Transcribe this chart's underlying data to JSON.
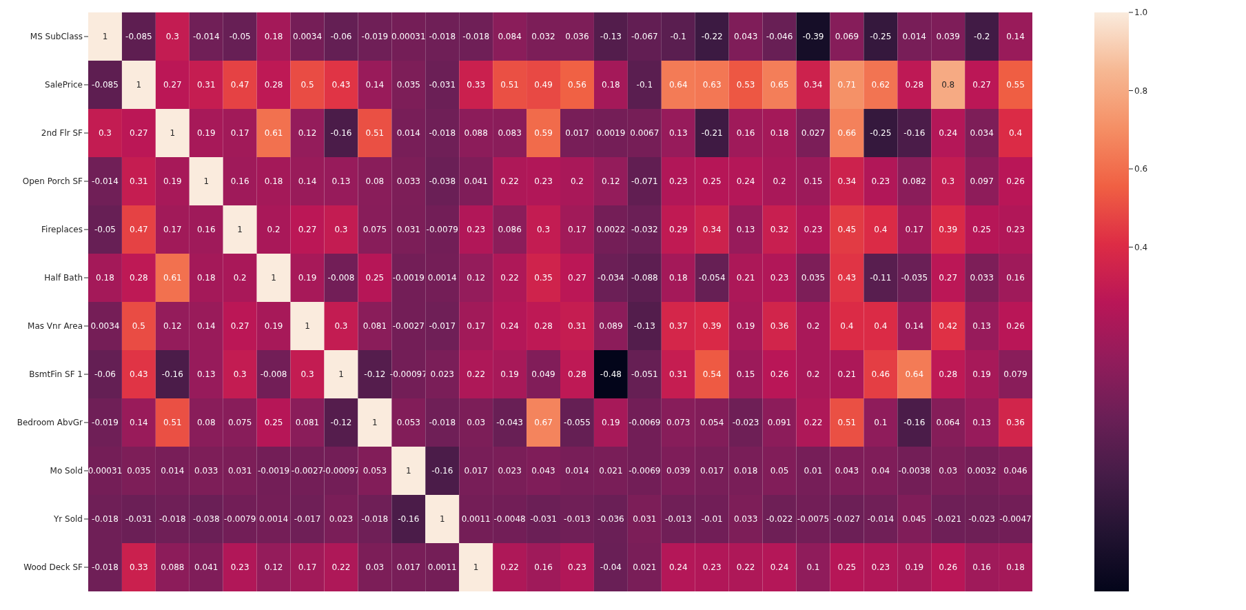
{
  "chart_data": {
    "type": "heatmap",
    "categories": [
      null,
      null,
      null,
      null,
      null,
      null,
      null,
      null,
      null,
      null,
      null,
      null,
      null,
      null,
      null,
      null,
      null,
      null,
      null,
      null,
      null,
      null,
      null,
      null,
      null,
      null,
      null,
      null
    ],
    "y_categories": [
      "MS SubClass",
      "SalePrice",
      "2nd Flr SF",
      "Open Porch SF",
      "Fireplaces",
      "Half Bath",
      "Mas Vnr Area",
      "BsmtFin SF 1",
      "Bedroom AbvGr",
      "Mo Sold",
      "Yr Sold",
      "Wood Deck SF"
    ],
    "cells": [
      [
        1,
        -0.085,
        0.3,
        -0.014,
        -0.05,
        0.18,
        0.0034,
        -0.06,
        -0.019,
        0.00031,
        -0.018,
        -0.018,
        0.084,
        0.032,
        0.036,
        -0.13,
        -0.067,
        -0.1,
        -0.22,
        0.043,
        -0.046,
        -0.39,
        0.069,
        -0.25,
        0.014,
        0.039,
        -0.2,
        0.14
      ],
      [
        -0.085,
        1,
        0.27,
        0.31,
        0.47,
        0.28,
        0.5,
        0.43,
        0.14,
        0.035,
        -0.031,
        0.33,
        0.51,
        0.49,
        0.56,
        0.18,
        -0.1,
        0.64,
        0.63,
        0.53,
        0.65,
        0.34,
        0.71,
        0.62,
        0.28,
        0.8,
        0.27,
        0.55
      ],
      [
        0.3,
        0.27,
        1,
        0.19,
        0.17,
        0.61,
        0.12,
        -0.16,
        0.51,
        0.014,
        -0.018,
        0.088,
        0.083,
        0.59,
        0.017,
        0.0019,
        0.0067,
        0.13,
        -0.21,
        0.16,
        0.18,
        0.027,
        0.66,
        -0.25,
        -0.16,
        0.24,
        0.034,
        0.4
      ],
      [
        -0.014,
        0.31,
        0.19,
        1,
        0.16,
        0.18,
        0.14,
        0.13,
        0.08,
        0.033,
        -0.038,
        0.041,
        0.22,
        0.23,
        0.2,
        0.12,
        -0.071,
        0.23,
        0.25,
        0.24,
        0.2,
        0.15,
        0.34,
        0.23,
        0.082,
        0.3,
        0.097,
        0.26
      ],
      [
        -0.05,
        0.47,
        0.17,
        0.16,
        1,
        0.2,
        0.27,
        0.3,
        0.075,
        0.031,
        -0.0079,
        0.23,
        0.086,
        0.3,
        0.17,
        0.0022,
        -0.032,
        0.29,
        0.34,
        0.13,
        0.32,
        0.23,
        0.45,
        0.4,
        0.17,
        0.39,
        0.25,
        0.23
      ],
      [
        0.18,
        0.28,
        0.61,
        0.18,
        0.2,
        1,
        0.19,
        -0.008,
        0.25,
        -0.0019,
        0.0014,
        0.12,
        0.22,
        0.35,
        0.27,
        -0.034,
        -0.088,
        0.18,
        -0.054,
        0.21,
        0.23,
        0.035,
        0.43,
        -0.11,
        -0.035,
        0.27,
        0.033,
        0.16
      ],
      [
        0.0034,
        0.5,
        0.12,
        0.14,
        0.27,
        0.19,
        1,
        0.3,
        0.081,
        -0.0027,
        -0.017,
        0.17,
        0.24,
        0.28,
        0.31,
        0.089,
        -0.13,
        0.37,
        0.39,
        0.19,
        0.36,
        0.2,
        0.4,
        0.4,
        0.14,
        0.42,
        0.13,
        0.26
      ],
      [
        -0.06,
        0.43,
        -0.16,
        0.13,
        0.3,
        -0.008,
        0.3,
        1,
        -0.12,
        -0.00097,
        0.023,
        0.22,
        0.19,
        0.049,
        0.28,
        -0.48,
        -0.051,
        0.31,
        0.54,
        0.15,
        0.26,
        0.2,
        0.21,
        0.46,
        0.64,
        0.28,
        0.19,
        0.079
      ],
      [
        -0.019,
        0.14,
        0.51,
        0.08,
        0.075,
        0.25,
        0.081,
        -0.12,
        1,
        0.053,
        -0.018,
        0.03,
        -0.043,
        0.67,
        -0.055,
        0.19,
        -0.0069,
        0.073,
        0.054,
        -0.023,
        0.091,
        0.22,
        0.51,
        0.1,
        -0.16,
        0.064,
        0.13,
        0.36
      ],
      [
        0.00031,
        0.035,
        0.014,
        0.033,
        0.031,
        -0.0019,
        -0.0027,
        -0.00097,
        0.053,
        1,
        -0.16,
        0.017,
        0.023,
        0.043,
        0.014,
        0.021,
        -0.0069,
        0.039,
        0.017,
        0.018,
        0.05,
        0.01,
        0.043,
        0.04,
        -0.0038,
        0.03,
        0.0032,
        0.046
      ],
      [
        -0.018,
        -0.031,
        -0.018,
        -0.038,
        -0.0079,
        0.0014,
        -0.017,
        0.023,
        -0.018,
        -0.16,
        1,
        0.0011,
        -0.0048,
        -0.031,
        -0.013,
        -0.036,
        0.031,
        -0.013,
        -0.01,
        0.033,
        -0.022,
        -0.0075,
        -0.027,
        -0.014,
        0.045,
        -0.021,
        -0.023,
        -0.0047
      ],
      [
        -0.018,
        0.33,
        0.088,
        0.041,
        0.23,
        0.12,
        0.17,
        0.22,
        0.03,
        0.017,
        0.0011,
        1,
        0.22,
        0.16,
        0.23,
        -0.04,
        0.021,
        0.24,
        0.23,
        0.22,
        0.24,
        0.1,
        0.25,
        0.23,
        0.19,
        0.26,
        0.16,
        0.18
      ]
    ],
    "clim": [
      -0.48,
      1
    ],
    "cticks": [
      0.4,
      0.6,
      0.8,
      {
        "value": 1,
        "label": "1.0"
      }
    ],
    "data_labels": true
  }
}
